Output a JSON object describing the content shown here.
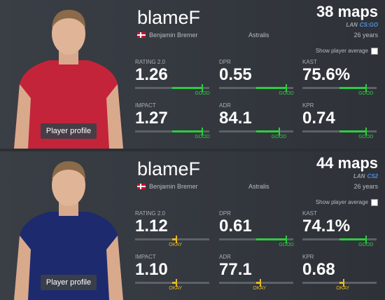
{
  "players": [
    {
      "name": "blameF",
      "full_name": "Benjamin Bremer",
      "team": "Astralis",
      "maps": "38 maps",
      "event": "LAN",
      "game": "CS:GO",
      "age": "26 years",
      "show_average": "Show player average",
      "profile_button": "Player profile",
      "stats": [
        {
          "label": "RATING 2.0",
          "value": "1.26",
          "rating": "GOOD"
        },
        {
          "label": "DPR",
          "value": "0.55",
          "rating": "GOOD"
        },
        {
          "label": "KAST",
          "value": "75.6%",
          "rating": "GOOD"
        },
        {
          "label": "IMPACT",
          "value": "1.27",
          "rating": "GOOD"
        },
        {
          "label": "ADR",
          "value": "84.1",
          "rating": "GOOD"
        },
        {
          "label": "KPR",
          "value": "0.74",
          "rating": "GOOD"
        }
      ]
    },
    {
      "name": "blameF",
      "full_name": "Benjamin Bremer",
      "team": "Astralis",
      "maps": "44 maps",
      "event": "LAN",
      "game": "CS2",
      "age": "26 years",
      "show_average": "Show player average",
      "profile_button": "Player profile",
      "stats": [
        {
          "label": "RATING 2.0",
          "value": "1.12",
          "rating": "OKAY"
        },
        {
          "label": "DPR",
          "value": "0.61",
          "rating": "GOOD"
        },
        {
          "label": "KAST",
          "value": "74.1%",
          "rating": "GOOD"
        },
        {
          "label": "IMPACT",
          "value": "1.10",
          "rating": "OKAY"
        },
        {
          "label": "ADR",
          "value": "77.1",
          "rating": "OKAY"
        },
        {
          "label": "KPR",
          "value": "0.68",
          "rating": "OKAY"
        }
      ]
    }
  ]
}
